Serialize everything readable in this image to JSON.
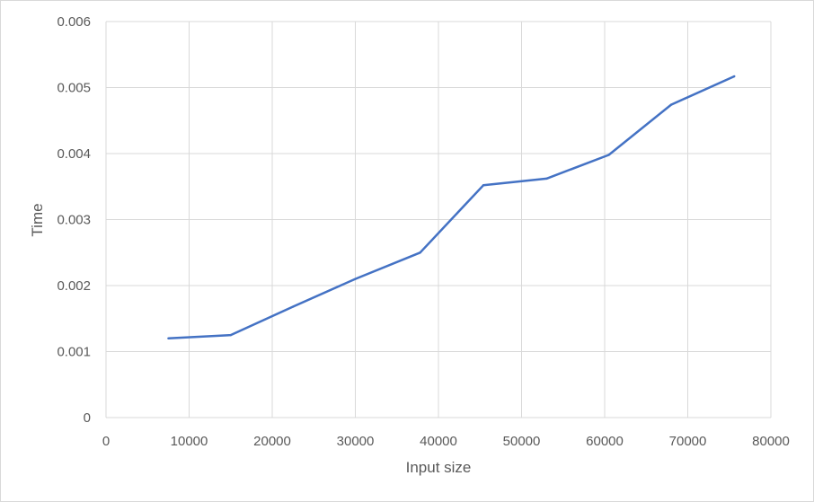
{
  "chart_data": {
    "type": "line",
    "title": "",
    "xlabel": "Input size",
    "ylabel": "Time",
    "xlim": [
      0,
      80000
    ],
    "ylim": [
      0,
      0.006
    ],
    "x_ticks": [
      "0",
      "10000",
      "20000",
      "30000",
      "40000",
      "50000",
      "60000",
      "70000",
      "80000"
    ],
    "y_ticks": [
      "0",
      "0.001",
      "0.002",
      "0.003",
      "0.004",
      "0.005",
      "0.006"
    ],
    "grid": true,
    "legend": "none",
    "colors": {
      "line": "#4472c4",
      "grid": "#d9d9d9"
    },
    "series": [
      {
        "x": [
          7500,
          15000,
          22500,
          30000,
          37800,
          45400,
          53000,
          60500,
          68000,
          75600
        ],
        "y": [
          0.0012,
          0.00125,
          0.00168,
          0.0021,
          0.0025,
          0.00352,
          0.00362,
          0.00398,
          0.00474,
          0.00517
        ]
      }
    ]
  }
}
